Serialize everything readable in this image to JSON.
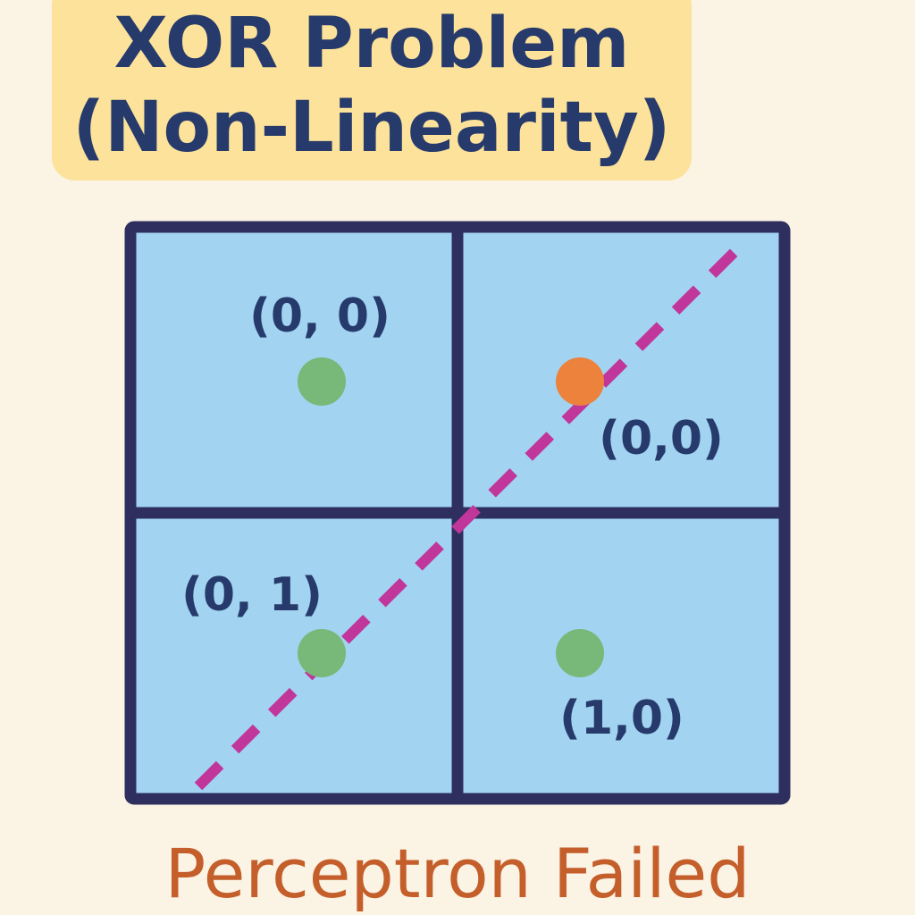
{
  "title": {
    "line1": "XOR Problem",
    "line2": "(Non-Linearity)"
  },
  "points": [
    {
      "label": "(0, 0)",
      "color": "#78b878"
    },
    {
      "label": "(0,0)",
      "color": "#ec823c"
    },
    {
      "label": "(0, 1)",
      "color": "#78b878"
    },
    {
      "label": "(1,0)",
      "color": "#78b878"
    }
  ],
  "colors": {
    "background": "#fbf3e4",
    "title_box": "#fce29a",
    "title_text": "#263a6b",
    "grid_fill": "#a2d4f2",
    "grid_border": "#2e2f5e",
    "decision_line": "#c0369a",
    "caption_text": "#c45e2a"
  },
  "caption": "Perceptron Failed"
}
